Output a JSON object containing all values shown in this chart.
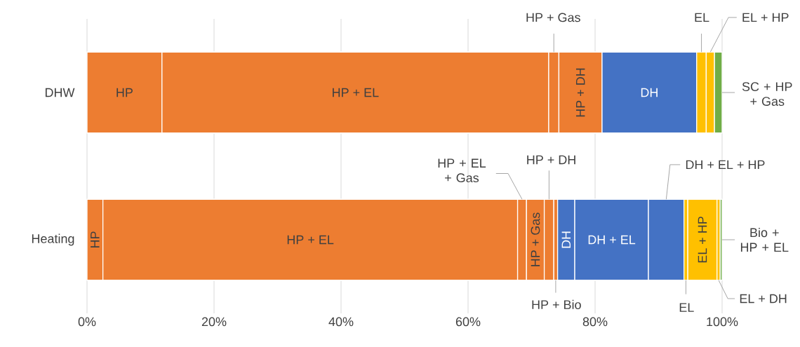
{
  "chart_data": {
    "type": "bar",
    "orientation": "horizontal",
    "stacked": true,
    "grid": "x",
    "categories": [
      "DHW",
      "Heating"
    ],
    "xlim": [
      0,
      100
    ],
    "xticks": [
      {
        "value": 0,
        "label": "0%"
      },
      {
        "value": 20,
        "label": "20%"
      },
      {
        "value": 40,
        "label": "40%"
      },
      {
        "value": 60,
        "label": "60%"
      },
      {
        "value": 80,
        "label": "80%"
      },
      {
        "value": 100,
        "label": "100%"
      }
    ],
    "series": [
      {
        "name": "HP",
        "color": "#ed7d31",
        "values": [
          11.8,
          2.5
        ]
      },
      {
        "name": "HP + EL",
        "color": "#ed7d31",
        "values": [
          60.9,
          65.3
        ]
      },
      {
        "name": "HP + EL + Gas",
        "color": "#ed7d31",
        "values": [
          null,
          1.4
        ]
      },
      {
        "name": "HP + Gas",
        "color": "#ed7d31",
        "values": [
          1.6,
          2.8
        ]
      },
      {
        "name": "HP + DH",
        "color": "#ed7d31",
        "values": [
          6.8,
          1.5
        ]
      },
      {
        "name": "HP + Bio",
        "color": "#ed7d31",
        "values": [
          null,
          0.6
        ]
      },
      {
        "name": "DH",
        "color": "#4472c4",
        "values": [
          14.9,
          2.7
        ]
      },
      {
        "name": "DH + EL",
        "color": "#4472c4",
        "values": [
          null,
          11.6
        ]
      },
      {
        "name": "DH + EL + HP",
        "color": "#4472c4",
        "values": [
          null,
          5.6
        ]
      },
      {
        "name": "EL",
        "color": "#ffc000",
        "values": [
          1.5,
          0.6
        ]
      },
      {
        "name": "EL + HP",
        "color": "#ffc000",
        "values": [
          1.3,
          4.6
        ]
      },
      {
        "name": "EL + DH",
        "color": "#ffc000",
        "values": [
          null,
          0.5
        ]
      },
      {
        "name": "Bio + HP + EL",
        "color": "#70ad47",
        "values": [
          null,
          0.3
        ]
      },
      {
        "name": "SC + HP + Gas",
        "color": "#70ad47",
        "values": [
          1.2,
          null
        ]
      }
    ]
  }
}
